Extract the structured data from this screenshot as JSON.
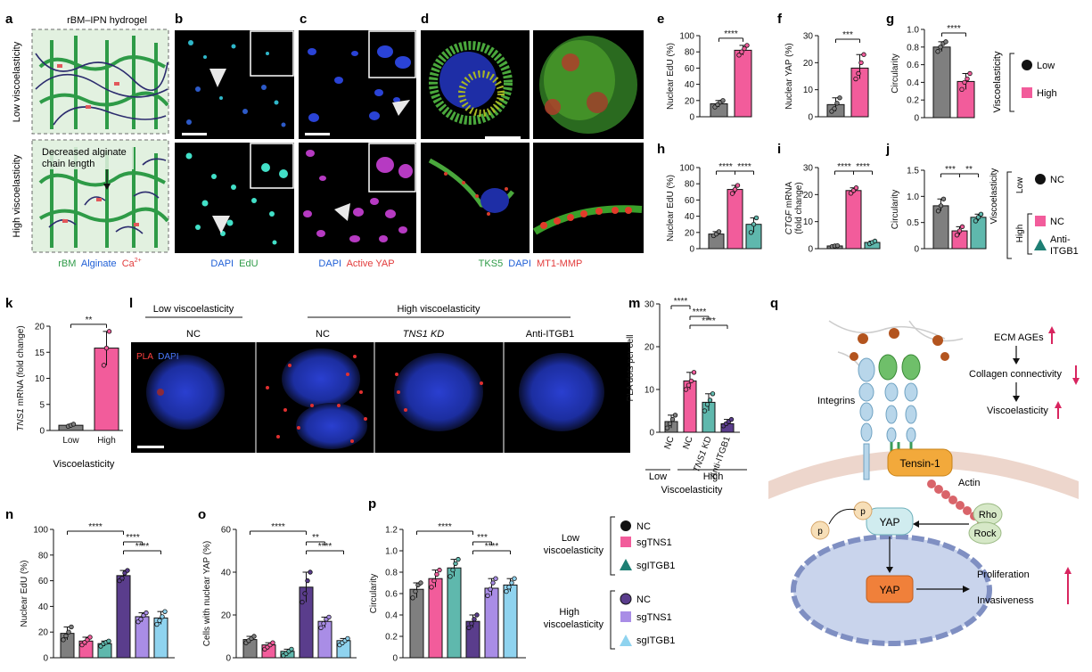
{
  "colors": {
    "gray": "#7f7f7f",
    "pink": "#f25c9b",
    "teal": "#5fb8ad",
    "purple": "#5a3d8c",
    "lilac": "#a98de6",
    "lightblue": "#8fd3ef",
    "green": "#2e9b47",
    "blue": "#1f5fd6",
    "red": "#e23b3b"
  },
  "labels": {
    "a": "a",
    "b": "b",
    "c": "c",
    "d": "d",
    "e": "e",
    "f": "f",
    "g": "g",
    "h": "h",
    "i": "i",
    "j": "j",
    "k": "k",
    "l": "l",
    "m": "m",
    "n": "n",
    "o": "o",
    "p": "p",
    "q": "q"
  },
  "panel_a": {
    "title": "rBM–IPN hydrogel",
    "low": "Low viscoelasticity",
    "high": "High viscoelasticity",
    "annotation_line1": "Decreased alginate",
    "annotation_line2": "chain length",
    "legend_rbm": "rBM",
    "legend_alg": "Alginate",
    "legend_ca": "Ca",
    "legend_ca_sup": "2+"
  },
  "panel_b": {
    "stain1": "DAPI",
    "stain2": "EdU"
  },
  "panel_c": {
    "stain1": "DAPI",
    "stain2": "Active YAP"
  },
  "panel_d": {
    "stain1": "TKS5",
    "stain2": "DAPI",
    "stain3": "MT1-MMP"
  },
  "panel_k": {
    "xlabel": "Viscoelasticity"
  },
  "panel_l": {
    "low": "Low viscoelasticity",
    "high": "High viscoelasticity",
    "cols": [
      "NC",
      "NC",
      "TNS1 KD",
      "Anti-ITGB1"
    ],
    "stain1": "PLA",
    "stain2": "DAPI"
  },
  "panel_m": {
    "group_low": "Low",
    "group_high": "High",
    "xlabel": "Viscoelasticity"
  },
  "legend_g": {
    "title": "Viscoelasticity",
    "low": "Low",
    "high": "High"
  },
  "legend_j": {
    "title": "Viscoelasticity",
    "low": "Low",
    "high": "High",
    "nc1": "NC",
    "nc2": "NC",
    "anti": "Anti-",
    "anti2": "ITGB1"
  },
  "legend_p": {
    "low_title1": "Low",
    "low_title2": "viscoelasticity",
    "high_title1": "High",
    "high_title2": "viscoelasticity",
    "items": [
      "NC",
      "sgTNS1",
      "sgITGB1",
      "NC",
      "sgTNS1",
      "sgITGB1"
    ]
  },
  "panel_q": {
    "ecm": "ECM AGEs",
    "collagen": "Collagen connectivity",
    "visco": "Viscoelasticity",
    "integrins": "Integrins",
    "tensin": "Tensin-1",
    "actin": "Actin",
    "rho": "Rho",
    "rock": "Rock",
    "yap": "YAP",
    "yap2": "YAP",
    "p1": "p",
    "p2": "p",
    "prolif": "Proliferation",
    "invas": "Invasiveness"
  },
  "chart_data": [
    {
      "id": "e",
      "type": "bar",
      "ylabel": "Nuclear EdU (%)",
      "ylim": [
        0,
        100
      ],
      "yticks": [
        0,
        20,
        40,
        60,
        80,
        100
      ],
      "categories": [
        "Low",
        "High"
      ],
      "values": [
        16,
        82
      ],
      "colors": [
        "gray",
        "pink"
      ],
      "points": [
        [
          12,
          15,
          18,
          20
        ],
        [
          76,
          80,
          84,
          88
        ]
      ],
      "sig": [
        {
          "a": 0,
          "b": 1,
          "label": "****"
        }
      ]
    },
    {
      "id": "f",
      "type": "bar",
      "ylabel": "Nuclear YAP (%)",
      "ylim": [
        0,
        30
      ],
      "yticks": [
        0,
        10,
        20,
        30
      ],
      "categories": [
        "Low",
        "High"
      ],
      "values": [
        4.5,
        18
      ],
      "colors": [
        "gray",
        "pink"
      ],
      "points": [
        [
          2,
          3,
          5,
          7
        ],
        [
          14,
          16,
          20,
          23
        ]
      ],
      "sig": [
        {
          "a": 0,
          "b": 1,
          "label": "***"
        }
      ]
    },
    {
      "id": "g",
      "type": "bar",
      "ylabel": "Circularity",
      "ylim": [
        0,
        1.0
      ],
      "yticks": [
        "0",
        "0.2",
        "0.4",
        "0.6",
        "0.8",
        "1.0"
      ],
      "categories": [
        "Low",
        "High"
      ],
      "values": [
        0.8,
        0.41
      ],
      "colors": [
        "gray",
        "pink"
      ],
      "points": [
        [
          0.75,
          0.8,
          0.84,
          0.86
        ],
        [
          0.32,
          0.4,
          0.44,
          0.5
        ]
      ],
      "sig": [
        {
          "a": 0,
          "b": 1,
          "label": "****"
        }
      ]
    },
    {
      "id": "h",
      "type": "bar",
      "ylabel": "Nuclear EdU (%)",
      "ylim": [
        0,
        100
      ],
      "yticks": [
        0,
        20,
        40,
        60,
        80,
        100
      ],
      "categories": [
        "NC",
        "NC",
        "Anti-ITGB1"
      ],
      "values": [
        18,
        73,
        30
      ],
      "colors": [
        "gray",
        "pink",
        "teal"
      ],
      "points": [
        [
          16,
          18,
          21
        ],
        [
          68,
          73,
          78
        ],
        [
          20,
          30,
          38
        ]
      ],
      "sig": [
        {
          "a": 0,
          "b": 1,
          "label": "****"
        },
        {
          "a": 1,
          "b": 2,
          "label": "****"
        }
      ]
    },
    {
      "id": "i",
      "type": "bar",
      "ylabel": "CTGF mRNA (fold change)",
      "ylabel_italic": "CTGF",
      "ylabel_rest": " mRNA",
      "ylabel2": "(fold change)",
      "ylim": [
        0,
        30
      ],
      "yticks": [
        0,
        10,
        20,
        30
      ],
      "categories": [
        "NC",
        "NC",
        "Anti-ITGB1"
      ],
      "values": [
        1,
        21.5,
        2.3
      ],
      "colors": [
        "gray",
        "pink",
        "teal"
      ],
      "points": [
        [
          0.8,
          1,
          1.1
        ],
        [
          20.5,
          21.5,
          22.5
        ],
        [
          1.8,
          2.3,
          2.8
        ]
      ],
      "sig": [
        {
          "a": 0,
          "b": 1,
          "label": "****"
        },
        {
          "a": 1,
          "b": 2,
          "label": "****"
        }
      ]
    },
    {
      "id": "j",
      "type": "bar",
      "ylabel": "Circularity",
      "ylim": [
        0,
        1.5
      ],
      "yticks": [
        "0",
        "0.5",
        "1.0",
        "1.5"
      ],
      "categories": [
        "NC",
        "NC",
        "Anti-ITGB1"
      ],
      "values": [
        0.82,
        0.34,
        0.6
      ],
      "colors": [
        "gray",
        "pink",
        "teal"
      ],
      "points": [
        [
          0.72,
          0.82,
          0.95
        ],
        [
          0.26,
          0.34,
          0.42
        ],
        [
          0.53,
          0.6,
          0.66
        ]
      ],
      "sig": [
        {
          "a": 0,
          "b": 1,
          "label": "***"
        },
        {
          "a": 1,
          "b": 2,
          "label": "**"
        }
      ]
    },
    {
      "id": "k",
      "type": "bar",
      "ylabel": "TNS1 mRNA (fold change)",
      "ylabel_italic": "TNS1",
      "ylabel_rest": " mRNA (fold change)",
      "ylim": [
        0,
        20
      ],
      "yticks": [
        0,
        5,
        10,
        15,
        20
      ],
      "categories": [
        "Low",
        "High"
      ],
      "values": [
        1,
        15.8
      ],
      "colors": [
        "gray",
        "pink"
      ],
      "points": [
        [
          0.8,
          1,
          1.2
        ],
        [
          12.5,
          15.8,
          19
        ]
      ],
      "sig": [
        {
          "a": 0,
          "b": 1,
          "label": "**"
        }
      ]
    },
    {
      "id": "m",
      "type": "bar",
      "ylabel": "PLA dots per cell",
      "ylim": [
        0,
        30
      ],
      "yticks": [
        0,
        10,
        20,
        30
      ],
      "categories": [
        "NC",
        "NC",
        "TNS1 KD",
        "Anti-ITGB1"
      ],
      "values": [
        2.5,
        12,
        7,
        2
      ],
      "colors": [
        "gray",
        "pink",
        "teal",
        "purple"
      ],
      "points": [
        [
          1,
          2,
          3,
          4
        ],
        [
          10,
          11,
          12,
          14
        ],
        [
          5,
          6.5,
          7.5,
          9
        ],
        [
          1.5,
          2,
          2.5,
          3
        ]
      ],
      "sig": [
        {
          "a": 0,
          "b": 1,
          "label": "****"
        },
        {
          "a": 1,
          "b": 2,
          "label": "****"
        },
        {
          "a": 1,
          "b": 3,
          "label": "****"
        }
      ]
    },
    {
      "id": "n",
      "type": "bar",
      "ylabel": "Nuclear EdU (%)",
      "ylim": [
        0,
        100
      ],
      "yticks": [
        0,
        20,
        40,
        60,
        80,
        100
      ],
      "categories": [
        "NC",
        "sgTNS1",
        "sgITGB1",
        "NC",
        "sgTNS1",
        "sgITGB1"
      ],
      "values": [
        19,
        13,
        11,
        64,
        32,
        31
      ],
      "colors": [
        "gray",
        "pink",
        "teal",
        "purple",
        "lilac",
        "lightblue"
      ],
      "points": [
        [
          14,
          17,
          20,
          24
        ],
        [
          10,
          12,
          14,
          16
        ],
        [
          9,
          11,
          12,
          13
        ],
        [
          60,
          62,
          66,
          68
        ],
        [
          28,
          30,
          33,
          35
        ],
        [
          26,
          29,
          32,
          36
        ]
      ],
      "sig": [
        {
          "a": 0,
          "b": 3,
          "label": "****"
        },
        {
          "a": 3,
          "b": 4,
          "label": "****"
        },
        {
          "a": 3,
          "b": 5,
          "label": "****"
        }
      ]
    },
    {
      "id": "o",
      "type": "bar",
      "ylabel": "Cells with nuclear YAP (%)",
      "ylim": [
        0,
        60
      ],
      "yticks": [
        0,
        20,
        40,
        60
      ],
      "categories": [
        "NC",
        "sgTNS1",
        "sgITGB1",
        "NC",
        "sgTNS1",
        "sgITGB1"
      ],
      "values": [
        8.5,
        6,
        3,
        33,
        17,
        8
      ],
      "colors": [
        "gray",
        "pink",
        "teal",
        "purple",
        "lilac",
        "lightblue"
      ],
      "points": [
        [
          7,
          8,
          9,
          10
        ],
        [
          4,
          5,
          6,
          7
        ],
        [
          1,
          2,
          3,
          4
        ],
        [
          26,
          30,
          36,
          40
        ],
        [
          14,
          16,
          18,
          19
        ],
        [
          6,
          7,
          8,
          9
        ]
      ],
      "sig": [
        {
          "a": 0,
          "b": 3,
          "label": "****"
        },
        {
          "a": 3,
          "b": 4,
          "label": "**"
        },
        {
          "a": 3,
          "b": 5,
          "label": "****"
        }
      ]
    },
    {
      "id": "p",
      "type": "bar",
      "ylabel": "Circularity",
      "ylim": [
        0,
        1.2
      ],
      "yticks": [
        "0",
        "0.2",
        "0.4",
        "0.6",
        "0.8",
        "1.0",
        "1.2"
      ],
      "categories": [
        "NC",
        "sgTNS1",
        "sgITGB1",
        "NC",
        "sgTNS1",
        "sgITGB1"
      ],
      "values": [
        0.64,
        0.74,
        0.84,
        0.34,
        0.65,
        0.68
      ],
      "colors": [
        "gray",
        "pink",
        "teal",
        "purple",
        "lilac",
        "lightblue"
      ],
      "points": [
        [
          0.56,
          0.62,
          0.68,
          0.7
        ],
        [
          0.66,
          0.72,
          0.78,
          0.82
        ],
        [
          0.76,
          0.82,
          0.88,
          0.92
        ],
        [
          0.28,
          0.32,
          0.36,
          0.4
        ],
        [
          0.58,
          0.64,
          0.7,
          0.74
        ],
        [
          0.62,
          0.66,
          0.7,
          0.74
        ]
      ],
      "sig": [
        {
          "a": 0,
          "b": 3,
          "label": "****"
        },
        {
          "a": 3,
          "b": 4,
          "label": "***"
        },
        {
          "a": 3,
          "b": 5,
          "label": "****"
        }
      ]
    }
  ]
}
